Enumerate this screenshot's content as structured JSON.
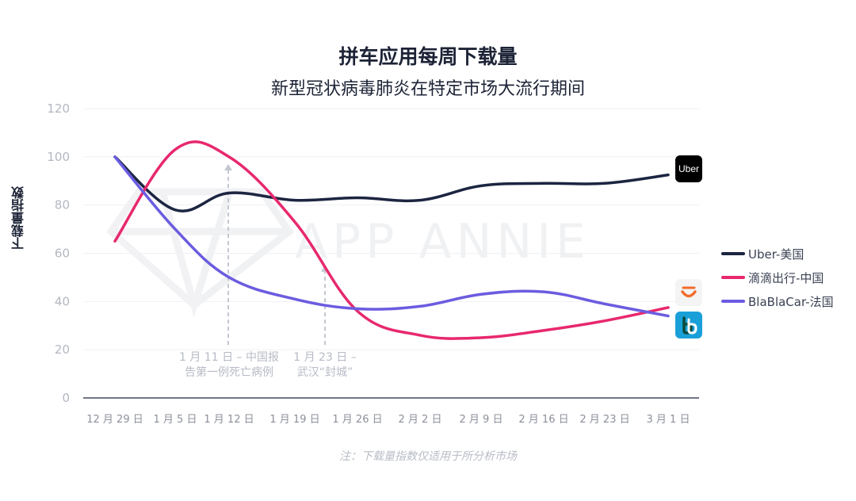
{
  "chart_data": {
    "type": "line",
    "title": "拼车应用每周下载量",
    "subtitle": "新型冠状病毒肺炎在特定市场大流行期间",
    "ylabel": "下载量指数",
    "xlabel": "",
    "ylim": [
      0,
      120
    ],
    "yticks": [
      "0",
      "20",
      "40",
      "60",
      "80",
      "100",
      "120"
    ],
    "categories": [
      "12 月 29 日",
      "1 月 5 日",
      "1 月 12 日",
      "1 月 19 日",
      "1 月 26 日",
      "2 月 2 日",
      "2 月 9 日",
      "2 月 16 日",
      "2 月 23 日",
      "3 月 1 日"
    ],
    "series": [
      {
        "name": "Uber-美国",
        "color": "#1c2541",
        "logo_text": "Uber",
        "logo_icon": "uber-logo-icon",
        "values": [
          100,
          78,
          85,
          82,
          83,
          82,
          88,
          89,
          89,
          92.5
        ]
      },
      {
        "name": "滴滴出行-中国",
        "color": "#e8286e",
        "logo_icon": "didi-logo-icon",
        "values": [
          65,
          103,
          100,
          73,
          36,
          26,
          25,
          28,
          32,
          37.5
        ]
      },
      {
        "name": "BlaBlaCar-法国",
        "color": "#6b5ce0",
        "logo_icon": "blablacar-logo-icon",
        "values": [
          100,
          70,
          50,
          41,
          37,
          38,
          43,
          44,
          39,
          34
        ]
      }
    ],
    "annotations": [
      {
        "text_line1": "1 月 11 日 – 中国报",
        "text_line2": "告第一例死亡病例",
        "x_position": "1 月 12 日",
        "arrow_top_value": 97,
        "arrow_bottom_value": 22
      },
      {
        "text_line1": "1 月 23 日 –",
        "text_line2": "武汉“封城”",
        "x_position": "1 月 19 日",
        "arrow_top_value": 55,
        "arrow_bottom_value": 22
      }
    ],
    "watermark": "APP ANNIE",
    "grid": true,
    "legend_position": "right"
  },
  "note": "注：下载量指数仅适用于所分析市场"
}
